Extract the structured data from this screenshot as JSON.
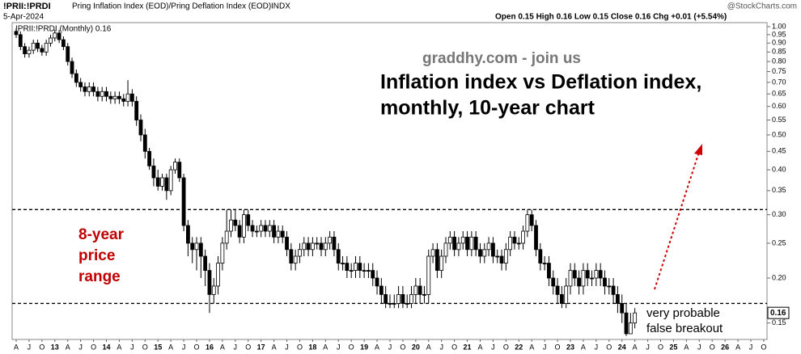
{
  "header": {
    "symbol": "!PRII:!PRDI",
    "description": "Pring Inflation Index (EOD)/Pring Deflation Index (EOD)",
    "exchange": "INDX",
    "date": "5-Apr-2024",
    "quote": "Open 0.15  High 0.16  Low 0.15  Close 0.16  Chg +0.01 (+5.54%)",
    "source": "@StockCharts.com"
  },
  "chart_data": {
    "type": "candlestick",
    "legend": "!PRII:!PRDI (Monthly) 0.16",
    "log_y": true,
    "up_color": "#ffffff",
    "down_color": "#000000",
    "ylim": [
      0.135,
      1.026
    ],
    "yticks": [
      0.15,
      {
        "value": 0.2,
        "label": "0.20"
      },
      0.25,
      {
        "value": 0.3,
        "label": "0.30"
      },
      0.35,
      {
        "value": 0.4,
        "label": "0.40"
      },
      0.45,
      {
        "value": 0.5,
        "label": "0.50"
      },
      0.55,
      {
        "value": 0.6,
        "label": "0.60"
      },
      0.65,
      {
        "value": 0.7,
        "label": "0.70"
      },
      0.75,
      {
        "value": 0.8,
        "label": "0.80"
      },
      0.85,
      {
        "value": 0.9,
        "label": "0.90"
      },
      0.95,
      {
        "value": 1,
        "label": "1.00"
      }
    ],
    "hlines": [
      0.31,
      0.17
    ],
    "categories": [
      "A",
      null,
      null,
      "J",
      null,
      null,
      "O",
      null,
      null,
      "13",
      null,
      null,
      "A",
      null,
      null,
      "J",
      null,
      null,
      "O",
      null,
      null,
      "14",
      null,
      null,
      "A",
      null,
      null,
      "J",
      null,
      null,
      "O",
      null,
      null,
      "15",
      null,
      null,
      "A",
      null,
      null,
      "J",
      null,
      null,
      "O",
      null,
      null,
      "16",
      null,
      null,
      "A",
      null,
      null,
      "J",
      null,
      null,
      "O",
      null,
      null,
      "17",
      null,
      null,
      "A",
      null,
      null,
      "J",
      null,
      null,
      "O",
      null,
      null,
      "18",
      null,
      null,
      "A",
      null,
      null,
      "J",
      null,
      null,
      "O",
      null,
      null,
      "19",
      null,
      null,
      "A",
      null,
      null,
      "J",
      null,
      null,
      "O",
      null,
      null,
      "20",
      null,
      null,
      "A",
      null,
      null,
      "J",
      null,
      null,
      "O",
      null,
      null,
      "21",
      null,
      null,
      "A",
      null,
      null,
      "J",
      null,
      null,
      "O",
      null,
      null,
      "22",
      null,
      null,
      "A",
      null,
      null,
      "J",
      null,
      null,
      "O",
      null,
      null,
      "23",
      null,
      null,
      "A",
      null,
      null,
      "J",
      null,
      null,
      "O",
      null,
      null,
      "24",
      null,
      null,
      "A",
      null,
      null,
      "J",
      null,
      null,
      "O",
      null,
      null,
      "25",
      null,
      null,
      "A",
      null,
      null,
      "J",
      null,
      null,
      "O",
      null,
      null,
      "26",
      null,
      null,
      "A",
      null,
      null,
      "J",
      null,
      null,
      "O"
    ],
    "open": [
      0.97,
      0.95,
      0.88,
      0.84,
      0.86,
      0.9,
      0.87,
      0.85,
      0.9,
      0.93,
      0.96,
      0.92,
      0.88,
      0.8,
      0.74,
      0.7,
      0.68,
      0.66,
      0.68,
      0.66,
      0.64,
      0.66,
      0.64,
      0.63,
      0.64,
      0.63,
      0.62,
      0.65,
      0.62,
      0.55,
      0.5,
      0.45,
      0.41,
      0.38,
      0.36,
      0.38,
      0.35,
      0.4,
      0.42,
      0.38,
      0.28,
      0.25,
      0.24,
      0.25,
      0.23,
      0.21,
      0.18,
      0.19,
      0.22,
      0.25,
      0.27,
      0.29,
      0.28,
      0.26,
      0.3,
      0.28,
      0.27,
      0.27,
      0.28,
      0.27,
      0.28,
      0.26,
      0.27,
      0.26,
      0.24,
      0.22,
      0.23,
      0.24,
      0.25,
      0.24,
      0.25,
      0.25,
      0.24,
      0.25,
      0.26,
      0.24,
      0.22,
      0.22,
      0.21,
      0.21,
      0.22,
      0.21,
      0.21,
      0.21,
      0.2,
      0.19,
      0.18,
      0.17,
      0.17,
      0.17,
      0.18,
      0.17,
      0.17,
      0.18,
      0.19,
      0.18,
      0.18,
      0.23,
      0.24,
      0.21,
      0.23,
      0.25,
      0.26,
      0.24,
      0.25,
      0.26,
      0.24,
      0.26,
      0.24,
      0.23,
      0.24,
      0.25,
      0.23,
      0.23,
      0.22,
      0.24,
      0.26,
      0.25,
      0.25,
      0.27,
      0.3,
      0.28,
      0.24,
      0.22,
      0.22,
      0.2,
      0.19,
      0.18,
      0.17,
      0.19,
      0.21,
      0.2,
      0.19,
      0.21,
      0.2,
      0.2,
      0.21,
      0.2,
      0.19,
      0.19,
      0.18,
      0.17,
      0.16,
      0.14,
      0.15,
      null,
      null,
      null,
      null,
      null,
      null,
      null,
      null,
      null,
      null,
      null,
      null,
      null,
      null,
      null,
      null,
      null,
      null,
      null,
      null,
      null,
      null,
      null,
      null,
      null,
      null,
      null,
      null,
      null,
      null
    ],
    "high": [
      0.99,
      0.97,
      0.9,
      0.88,
      0.92,
      0.92,
      0.89,
      0.92,
      0.95,
      0.98,
      0.98,
      0.94,
      0.9,
      0.82,
      0.76,
      0.72,
      0.7,
      0.7,
      0.7,
      0.68,
      0.68,
      0.68,
      0.66,
      0.66,
      0.66,
      0.65,
      0.71,
      0.67,
      0.64,
      0.57,
      0.52,
      0.46,
      0.43,
      0.4,
      0.39,
      0.39,
      0.41,
      0.43,
      0.43,
      0.39,
      0.29,
      0.26,
      0.26,
      0.26,
      0.24,
      0.22,
      0.2,
      0.23,
      0.26,
      0.31,
      0.31,
      0.31,
      0.29,
      0.31,
      0.31,
      0.29,
      0.28,
      0.29,
      0.29,
      0.29,
      0.29,
      0.28,
      0.28,
      0.27,
      0.25,
      0.24,
      0.25,
      0.26,
      0.26,
      0.26,
      0.26,
      0.26,
      0.26,
      0.27,
      0.27,
      0.25,
      0.23,
      0.23,
      0.22,
      0.23,
      0.23,
      0.22,
      0.22,
      0.22,
      0.21,
      0.2,
      0.19,
      0.18,
      0.18,
      0.19,
      0.19,
      0.18,
      0.19,
      0.2,
      0.2,
      0.19,
      0.24,
      0.25,
      0.25,
      0.24,
      0.26,
      0.27,
      0.27,
      0.26,
      0.27,
      0.27,
      0.27,
      0.27,
      0.25,
      0.25,
      0.26,
      0.26,
      0.24,
      0.24,
      0.25,
      0.27,
      0.27,
      0.26,
      0.28,
      0.31,
      0.31,
      0.29,
      0.25,
      0.23,
      0.23,
      0.21,
      0.2,
      0.19,
      0.2,
      0.22,
      0.22,
      0.21,
      0.22,
      0.22,
      0.21,
      0.22,
      0.22,
      0.21,
      0.2,
      0.2,
      0.19,
      0.18,
      0.17,
      0.16,
      0.165,
      null,
      null,
      null,
      null,
      null,
      null,
      null,
      null,
      null,
      null,
      null,
      null,
      null,
      null,
      null,
      null,
      null,
      null,
      null,
      null,
      null,
      null,
      null,
      null,
      null,
      null,
      null,
      null,
      null,
      null
    ],
    "low": [
      0.93,
      0.86,
      0.82,
      0.82,
      0.84,
      0.85,
      0.83,
      0.83,
      0.88,
      0.91,
      0.9,
      0.86,
      0.78,
      0.72,
      0.68,
      0.66,
      0.64,
      0.64,
      0.64,
      0.62,
      0.62,
      0.62,
      0.61,
      0.61,
      0.61,
      0.6,
      0.6,
      0.6,
      0.53,
      0.48,
      0.43,
      0.4,
      0.36,
      0.35,
      0.35,
      0.33,
      0.34,
      0.39,
      0.37,
      0.27,
      0.23,
      0.22,
      0.21,
      0.2,
      0.19,
      0.16,
      0.17,
      0.18,
      0.21,
      0.24,
      0.26,
      0.27,
      0.25,
      0.25,
      0.27,
      0.26,
      0.26,
      0.26,
      0.26,
      0.26,
      0.25,
      0.25,
      0.25,
      0.23,
      0.21,
      0.21,
      0.22,
      0.23,
      0.23,
      0.23,
      0.24,
      0.23,
      0.23,
      0.24,
      0.23,
      0.21,
      0.21,
      0.2,
      0.2,
      0.2,
      0.2,
      0.2,
      0.2,
      0.19,
      0.18,
      0.17,
      0.165,
      0.165,
      0.165,
      0.165,
      0.165,
      0.165,
      0.165,
      0.17,
      0.17,
      0.17,
      0.17,
      0.22,
      0.2,
      0.2,
      0.22,
      0.24,
      0.23,
      0.23,
      0.24,
      0.23,
      0.23,
      0.23,
      0.22,
      0.22,
      0.23,
      0.22,
      0.22,
      0.21,
      0.21,
      0.23,
      0.24,
      0.24,
      0.24,
      0.26,
      0.27,
      0.23,
      0.21,
      0.21,
      0.19,
      0.18,
      0.17,
      0.165,
      0.165,
      0.18,
      0.19,
      0.18,
      0.18,
      0.19,
      0.19,
      0.19,
      0.19,
      0.18,
      0.18,
      0.17,
      0.16,
      0.15,
      0.138,
      0.14,
      0.145,
      null,
      null,
      null,
      null,
      null,
      null,
      null,
      null,
      null,
      null,
      null,
      null,
      null,
      null,
      null,
      null,
      null,
      null,
      null,
      null,
      null,
      null,
      null,
      null,
      null,
      null,
      null,
      null,
      null,
      null
    ],
    "close": [
      0.95,
      0.88,
      0.84,
      0.86,
      0.9,
      0.87,
      0.85,
      0.9,
      0.93,
      0.96,
      0.92,
      0.88,
      0.8,
      0.74,
      0.7,
      0.68,
      0.66,
      0.68,
      0.66,
      0.64,
      0.66,
      0.64,
      0.63,
      0.64,
      0.63,
      0.62,
      0.65,
      0.62,
      0.55,
      0.5,
      0.45,
      0.41,
      0.38,
      0.36,
      0.38,
      0.35,
      0.4,
      0.42,
      0.38,
      0.28,
      0.25,
      0.24,
      0.25,
      0.23,
      0.21,
      0.18,
      0.19,
      0.22,
      0.25,
      0.27,
      0.29,
      0.28,
      0.26,
      0.3,
      0.28,
      0.27,
      0.27,
      0.28,
      0.27,
      0.28,
      0.26,
      0.27,
      0.26,
      0.24,
      0.22,
      0.23,
      0.24,
      0.25,
      0.24,
      0.25,
      0.25,
      0.24,
      0.25,
      0.26,
      0.24,
      0.22,
      0.22,
      0.21,
      0.21,
      0.22,
      0.21,
      0.21,
      0.21,
      0.2,
      0.19,
      0.18,
      0.17,
      0.17,
      0.17,
      0.18,
      0.17,
      0.17,
      0.18,
      0.19,
      0.18,
      0.18,
      0.23,
      0.24,
      0.21,
      0.23,
      0.25,
      0.26,
      0.24,
      0.25,
      0.26,
      0.24,
      0.26,
      0.24,
      0.23,
      0.24,
      0.25,
      0.23,
      0.23,
      0.22,
      0.24,
      0.26,
      0.25,
      0.25,
      0.27,
      0.3,
      0.28,
      0.24,
      0.22,
      0.22,
      0.2,
      0.19,
      0.18,
      0.17,
      0.19,
      0.21,
      0.2,
      0.19,
      0.21,
      0.2,
      0.2,
      0.21,
      0.2,
      0.19,
      0.19,
      0.18,
      0.17,
      0.16,
      0.14,
      0.15,
      0.16,
      null,
      null,
      null,
      null,
      null,
      null,
      null,
      null,
      null,
      null,
      null,
      null,
      null,
      null,
      null,
      null,
      null,
      null,
      null,
      null,
      null,
      null,
      null,
      null,
      null,
      null,
      null,
      null,
      null,
      null
    ],
    "annotations": {
      "site": "graddhy.com - join us",
      "title": [
        "Inflation index vs Deflation index,",
        "monthly, 10-year chart"
      ],
      "range": [
        "8-year",
        "price",
        "range"
      ],
      "breakout": [
        "very probable",
        "false breakout"
      ]
    }
  }
}
